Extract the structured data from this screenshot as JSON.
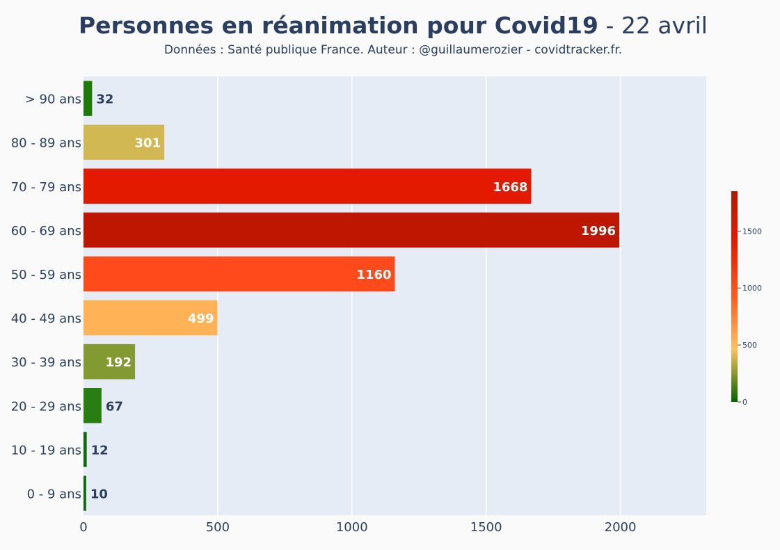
{
  "title_main": "Personnes en réanimation pour Covid19",
  "title_date": " - 22 avril",
  "subtitle": "Données : Santé publique France. Auteur : @guillaumerozier - covidtracker.fr.",
  "colors": {
    "plot_bg": "#e5ecf6",
    "title": "#2a3f5f",
    "label_dark": "#2a3f5f",
    "label_light": "#ffffff",
    "colorscale": [
      "#006400",
      "#ffc15e",
      "#ff5a1f",
      "#e81a00",
      "#b11a00"
    ]
  },
  "chart_data": {
    "type": "bar",
    "orientation": "horizontal",
    "categories": [
      "> 90 ans",
      "80 - 89 ans",
      "70 - 79 ans",
      "60 - 69 ans",
      "50 - 59 ans",
      "40 - 49 ans",
      "30 - 39 ans",
      "20 - 29 ans",
      "10 - 19 ans",
      "0 - 9 ans"
    ],
    "values": [
      32,
      301,
      1668,
      1996,
      1160,
      499,
      192,
      67,
      12,
      10
    ],
    "bar_colors": [
      "#1f7a0a",
      "#d2b853",
      "#e31a00",
      "#bd1701",
      "#ff4b1c",
      "#ffb356",
      "#839a32",
      "#2a7d12",
      "#0d6b0a",
      "#0d6b0a"
    ],
    "xlim": [
      0,
      2320
    ],
    "xticks": [
      0,
      500,
      1000,
      1500,
      2000
    ],
    "grid": true,
    "colorbar": {
      "min": 0,
      "max": 1850,
      "ticks": [
        0,
        500,
        1000,
        1500
      ]
    }
  }
}
